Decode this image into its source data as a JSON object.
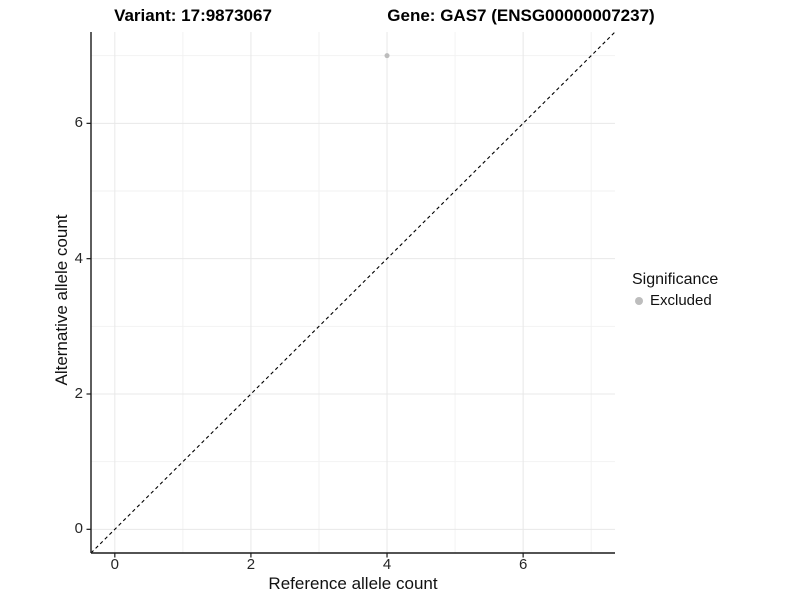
{
  "chart_data": {
    "type": "scatter",
    "titles": {
      "left": "Variant: 17:9873067",
      "right": "Gene: GAS7 (ENSG00000007237)"
    },
    "xlabel": "Reference allele count",
    "ylabel": "Alternative allele count",
    "xlim": [
      -0.35,
      7.35
    ],
    "ylim": [
      -0.35,
      7.35
    ],
    "x_major_ticks": [
      0,
      2,
      4,
      6
    ],
    "y_major_ticks": [
      0,
      2,
      4,
      6
    ],
    "x_minor_ticks": [
      1,
      3,
      5,
      7
    ],
    "y_minor_ticks": [
      1,
      3,
      5,
      7
    ],
    "grid": {
      "show": true,
      "major_color": "#e8e8e8",
      "minor_color": "#f2f2f2"
    },
    "axis_color": "#1a1a1a",
    "identity_line": {
      "description": "y = x diagonal",
      "style": "dashed",
      "color": "#000000"
    },
    "series": [
      {
        "name": "Excluded",
        "color": "#bdbdbd",
        "points": [
          {
            "x": 4,
            "y": 7
          }
        ]
      }
    ],
    "legend": {
      "title": "Significance",
      "position": "right",
      "entries": [
        {
          "label": "Excluded",
          "color": "#bdbdbd"
        }
      ]
    }
  }
}
